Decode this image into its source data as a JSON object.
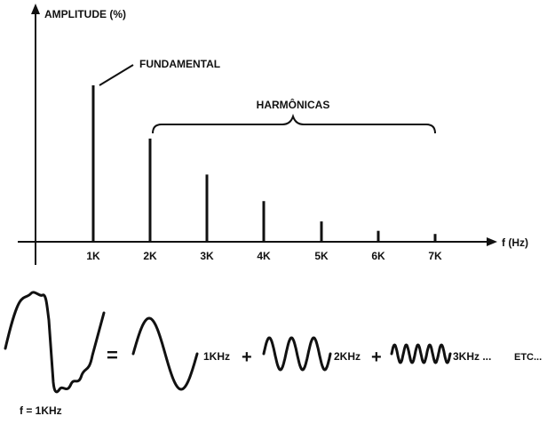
{
  "spectrum": {
    "y_label": "AMPLITUDE (%)",
    "x_label": "f (Hz)",
    "fundamental_label": "FUNDAMENTAL",
    "harmonics_label": "HARMÔNICAS",
    "ticks": [
      "1K",
      "2K",
      "3K",
      "4K",
      "5K",
      "6K",
      "7K"
    ],
    "relative_amplitudes": [
      1.0,
      0.66,
      0.43,
      0.26,
      0.13,
      0.07,
      0.05
    ]
  },
  "equation": {
    "signal_label": "f = 1KHz",
    "equals": "=",
    "plus": "+",
    "term1": "1KHz",
    "term2": "2KHz",
    "term3": "3KHz ...",
    "etc": "ETC..."
  }
}
